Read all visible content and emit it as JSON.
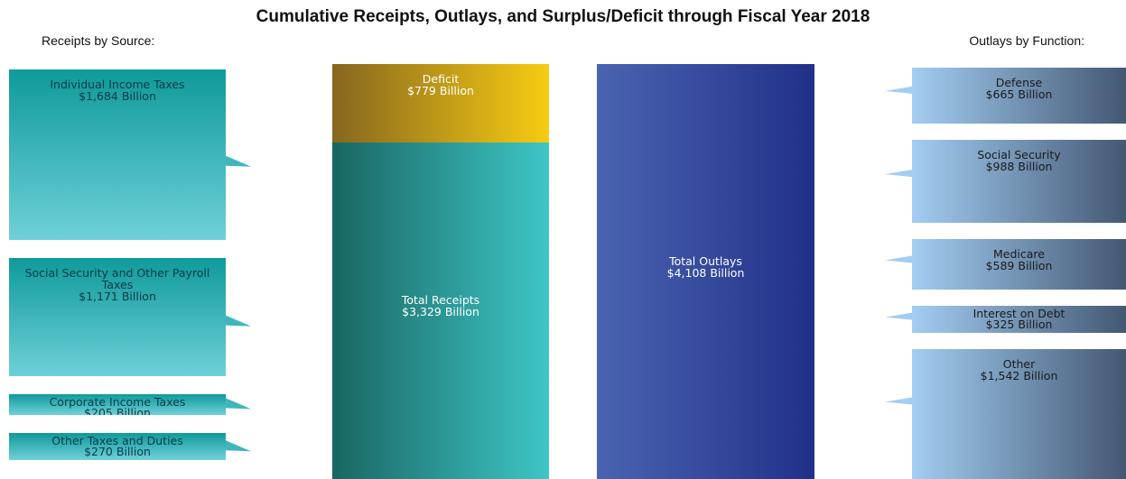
{
  "chart_data": {
    "type": "receipts-outlays",
    "title": "Cumulative Receipts, Outlays, and Surplus/Deficit through Fiscal Year 2018",
    "receipts_label": "Receipts by Source:",
    "outlays_label": "Outlays by Function:",
    "receipts": {
      "categories": [
        "Individual Income Taxes",
        "Social Security and Other Payroll Taxes",
        "Corporate Income Taxes",
        "Other Taxes and Duties"
      ],
      "values": [
        1684,
        1171,
        205,
        270
      ],
      "value_labels": [
        "$1,684 Billion",
        "$1,171 Billion",
        "$205 Billion",
        "$270 Billion"
      ]
    },
    "total_receipts": {
      "name": "Total Receipts",
      "value": 3329,
      "value_label": "$3,329 Billion"
    },
    "deficit": {
      "name": "Deficit",
      "value": 779,
      "value_label": "$779 Billion"
    },
    "total_outlays": {
      "name": "Total Outlays",
      "value": 4108,
      "value_label": "$4,108 Billion"
    },
    "outlays": {
      "categories": [
        "Defense",
        "Social Security",
        "Medicare",
        "Interest on Debt",
        "Other"
      ],
      "values": [
        665,
        988,
        589,
        325,
        1542
      ],
      "value_labels": [
        "$665 Billion",
        "$988 Billion",
        "$589 Billion",
        "$325 Billion",
        "$1,542 Billion"
      ]
    }
  }
}
